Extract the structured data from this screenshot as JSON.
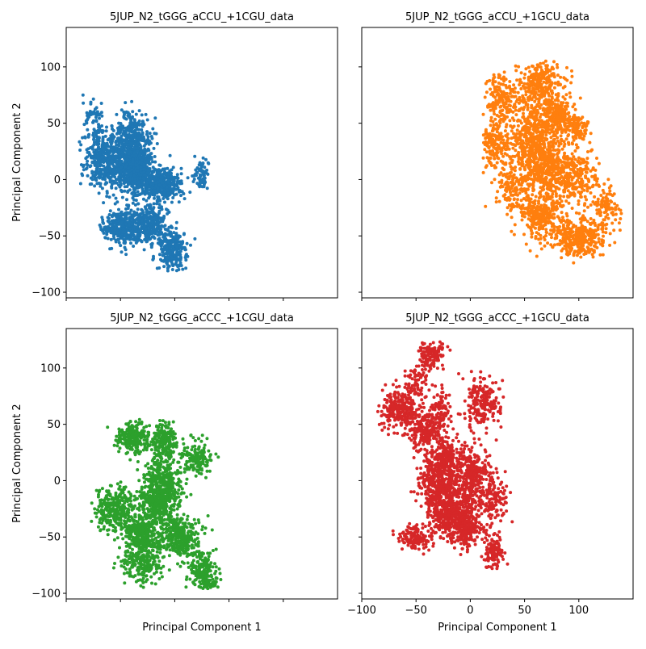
{
  "chart_data": [
    {
      "type": "scatter",
      "title": "5JUP_N2_tGGG_aCCU_+1CGU_data",
      "xlabel": "",
      "ylabel": "Principal Component 2",
      "xlim": [
        -100,
        150
      ],
      "ylim": [
        -105,
        135
      ],
      "xticks": [
        -100,
        -50,
        0,
        50,
        100
      ],
      "yticks": [
        -100,
        -50,
        0,
        50,
        100
      ],
      "xtick_labels_visible": false,
      "ytick_labels_visible": true,
      "color": "#1f77b4",
      "series": [
        {
          "clusters": [
            {
              "cx": -65,
              "cy": 18,
              "sx": 9,
              "sy": 13,
              "n": 420
            },
            {
              "cx": -40,
              "cy": 30,
              "sx": 9,
              "sy": 14,
              "n": 520
            },
            {
              "cx": -35,
              "cy": 5,
              "sx": 9,
              "sy": 10,
              "n": 480
            },
            {
              "cx": -12,
              "cy": -5,
              "sx": 9,
              "sy": 7,
              "n": 380
            },
            {
              "cx": -48,
              "cy": -42,
              "sx": 9,
              "sy": 8,
              "n": 330
            },
            {
              "cx": -22,
              "cy": -40,
              "sx": 8,
              "sy": 8,
              "n": 300
            },
            {
              "cx": -2,
              "cy": -62,
              "sx": 7,
              "sy": 9,
              "n": 250
            },
            {
              "cx": 25,
              "cy": 5,
              "sx": 4,
              "sy": 7,
              "n": 70
            },
            {
              "cx": -75,
              "cy": 55,
              "sx": 5,
              "sy": 8,
              "n": 50
            }
          ],
          "x_range": [
            -98,
            35
          ],
          "y_range": [
            -84,
            80
          ]
        }
      ]
    },
    {
      "type": "scatter",
      "title": "5JUP_N2_tGGG_aCCU_+1GCU_data",
      "xlabel": "",
      "ylabel": "",
      "xlim": [
        -100,
        150
      ],
      "ylim": [
        -105,
        135
      ],
      "xticks": [
        -100,
        -50,
        0,
        50,
        100
      ],
      "yticks": [
        -100,
        -50,
        0,
        50,
        100
      ],
      "xtick_labels_visible": false,
      "ytick_labels_visible": false,
      "color": "#ff7f0e",
      "series": [
        {
          "clusters": [
            {
              "cx": 30,
              "cy": 72,
              "sx": 10,
              "sy": 10,
              "n": 200
            },
            {
              "cx": 65,
              "cy": 85,
              "sx": 10,
              "sy": 10,
              "n": 280
            },
            {
              "cx": 22,
              "cy": 30,
              "sx": 8,
              "sy": 10,
              "n": 200
            },
            {
              "cx": 58,
              "cy": 38,
              "sx": 10,
              "sy": 14,
              "n": 400
            },
            {
              "cx": 80,
              "cy": 55,
              "sx": 8,
              "sy": 10,
              "n": 250
            },
            {
              "cx": 70,
              "cy": 10,
              "sx": 10,
              "sy": 12,
              "n": 350
            },
            {
              "cx": 95,
              "cy": 2,
              "sx": 10,
              "sy": 12,
              "n": 260
            },
            {
              "cx": 100,
              "cy": 45,
              "sx": 6,
              "sy": 6,
              "n": 90
            },
            {
              "cx": 65,
              "cy": -30,
              "sx": 10,
              "sy": 12,
              "n": 320
            },
            {
              "cx": 100,
              "cy": -52,
              "sx": 12,
              "sy": 8,
              "n": 340
            },
            {
              "cx": 125,
              "cy": -25,
              "sx": 7,
              "sy": 9,
              "n": 110
            },
            {
              "cx": 40,
              "cy": -5,
              "sx": 8,
              "sy": 12,
              "n": 160
            }
          ],
          "x_range": [
            12,
            140
          ],
          "y_range": [
            -74,
            111
          ]
        }
      ]
    },
    {
      "type": "scatter",
      "title": "5JUP_N2_tGGG_aCCC_+1CGU_data",
      "xlabel": "Principal Component 1",
      "ylabel": "Principal Component 2",
      "xlim": [
        -100,
        150
      ],
      "ylim": [
        -105,
        135
      ],
      "xticks": [
        -100,
        -50,
        0,
        50,
        100
      ],
      "yticks": [
        -100,
        -50,
        0,
        50,
        100
      ],
      "xtick_labels_visible": false,
      "ytick_labels_visible": true,
      "color": "#2ca02c",
      "series": [
        {
          "clusters": [
            {
              "cx": -38,
              "cy": 38,
              "sx": 7,
              "sy": 7,
              "n": 220
            },
            {
              "cx": -10,
              "cy": 35,
              "sx": 6,
              "sy": 9,
              "n": 200
            },
            {
              "cx": 20,
              "cy": 20,
              "sx": 7,
              "sy": 8,
              "n": 150
            },
            {
              "cx": -12,
              "cy": 0,
              "sx": 9,
              "sy": 10,
              "n": 280
            },
            {
              "cx": -55,
              "cy": -25,
              "sx": 10,
              "sy": 10,
              "n": 320
            },
            {
              "cx": -15,
              "cy": -20,
              "sx": 10,
              "sy": 10,
              "n": 360
            },
            {
              "cx": -30,
              "cy": -48,
              "sx": 9,
              "sy": 9,
              "n": 330
            },
            {
              "cx": 5,
              "cy": -50,
              "sx": 9,
              "sy": 9,
              "n": 300
            },
            {
              "cx": -30,
              "cy": -75,
              "sx": 9,
              "sy": 8,
              "n": 200
            },
            {
              "cx": 25,
              "cy": -78,
              "sx": 7,
              "sy": 8,
              "n": 170
            },
            {
              "cx": 30,
              "cy": -93,
              "sx": 6,
              "sy": 3,
              "n": 60
            }
          ],
          "x_range": [
            -77,
            43
          ],
          "y_range": [
            -96,
            62
          ]
        }
      ]
    },
    {
      "type": "scatter",
      "title": "5JUP_N2_tGGG_aCCC_+1GCU_data",
      "xlabel": "Principal Component 1",
      "ylabel": "",
      "xlim": [
        -100,
        150
      ],
      "ylim": [
        -105,
        135
      ],
      "xticks": [
        -100,
        -50,
        0,
        50,
        100
      ],
      "yticks": [
        -100,
        -50,
        0,
        50,
        100
      ],
      "xtick_labels_visible": true,
      "ytick_labels_visible": false,
      "color": "#d62728",
      "series": [
        {
          "clusters": [
            {
              "cx": -65,
              "cy": 65,
              "sx": 8,
              "sy": 9,
              "n": 250
            },
            {
              "cx": -50,
              "cy": 85,
              "sx": 5,
              "sy": 9,
              "n": 80
            },
            {
              "cx": -35,
              "cy": 112,
              "sx": 6,
              "sy": 6,
              "n": 130
            },
            {
              "cx": -40,
              "cy": 45,
              "sx": 8,
              "sy": 8,
              "n": 230
            },
            {
              "cx": -28,
              "cy": 65,
              "sx": 5,
              "sy": 8,
              "n": 80
            },
            {
              "cx": 10,
              "cy": 68,
              "sx": 9,
              "sy": 12,
              "n": 200
            },
            {
              "cx": -25,
              "cy": 20,
              "sx": 7,
              "sy": 8,
              "n": 180
            },
            {
              "cx": -30,
              "cy": 0,
              "sx": 9,
              "sy": 9,
              "n": 280
            },
            {
              "cx": 0,
              "cy": 5,
              "sx": 10,
              "sy": 12,
              "n": 380
            },
            {
              "cx": -20,
              "cy": -25,
              "sx": 10,
              "sy": 10,
              "n": 360
            },
            {
              "cx": -5,
              "cy": -40,
              "sx": 10,
              "sy": 10,
              "n": 330
            },
            {
              "cx": -50,
              "cy": -50,
              "sx": 8,
              "sy": 6,
              "n": 130
            },
            {
              "cx": 22,
              "cy": -65,
              "sx": 5,
              "sy": 7,
              "n": 110
            },
            {
              "cx": 20,
              "cy": -18,
              "sx": 7,
              "sy": 10,
              "n": 130
            }
          ],
          "x_range": [
            -88,
            40
          ],
          "y_range": [
            -78,
            126
          ]
        }
      ]
    }
  ]
}
